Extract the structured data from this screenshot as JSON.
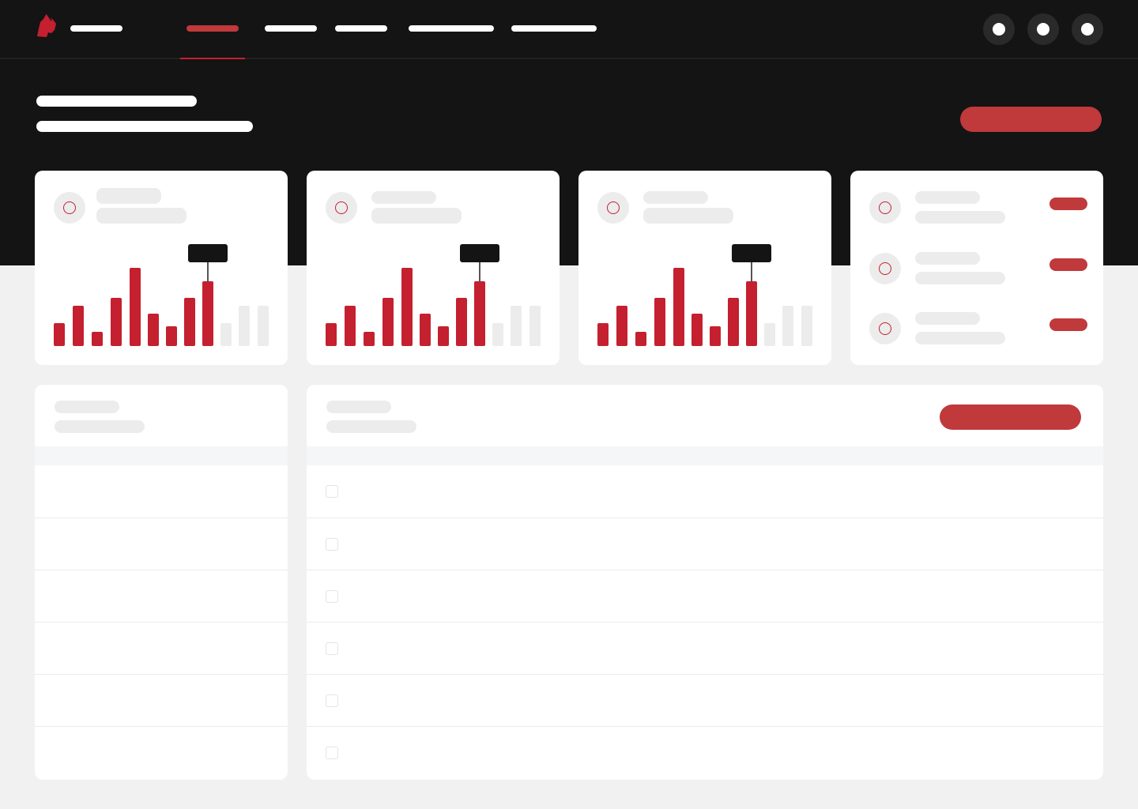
{
  "colors": {
    "accent": "#c4202f",
    "button": "#c0393b",
    "dark": "#141414",
    "page_bg": "#f1f1f1",
    "skeleton": "#ececec"
  },
  "nav": {
    "logo_icon": "samurai-helmet-logo",
    "items": 5,
    "active_index": 0,
    "header_actions": [
      "circle-button",
      "circle-button",
      "circle-button"
    ]
  },
  "chart_cards": [
    {
      "values": [
        29,
        51,
        18,
        61,
        99,
        41,
        25,
        61,
        82,
        29,
        51,
        51
      ],
      "highlight_index": 8,
      "active_count": 9
    },
    {
      "values": [
        29,
        51,
        18,
        61,
        99,
        41,
        25,
        61,
        82,
        29,
        51,
        51
      ],
      "highlight_index": 8,
      "active_count": 9
    },
    {
      "values": [
        29,
        51,
        18,
        61,
        99,
        41,
        25,
        61,
        82,
        29,
        51,
        51
      ],
      "highlight_index": 8,
      "active_count": 9
    }
  ],
  "list_card": {
    "rows": 3
  },
  "left_table": {
    "rows": 6
  },
  "right_table": {
    "rows": 6,
    "has_checkboxes": true
  }
}
